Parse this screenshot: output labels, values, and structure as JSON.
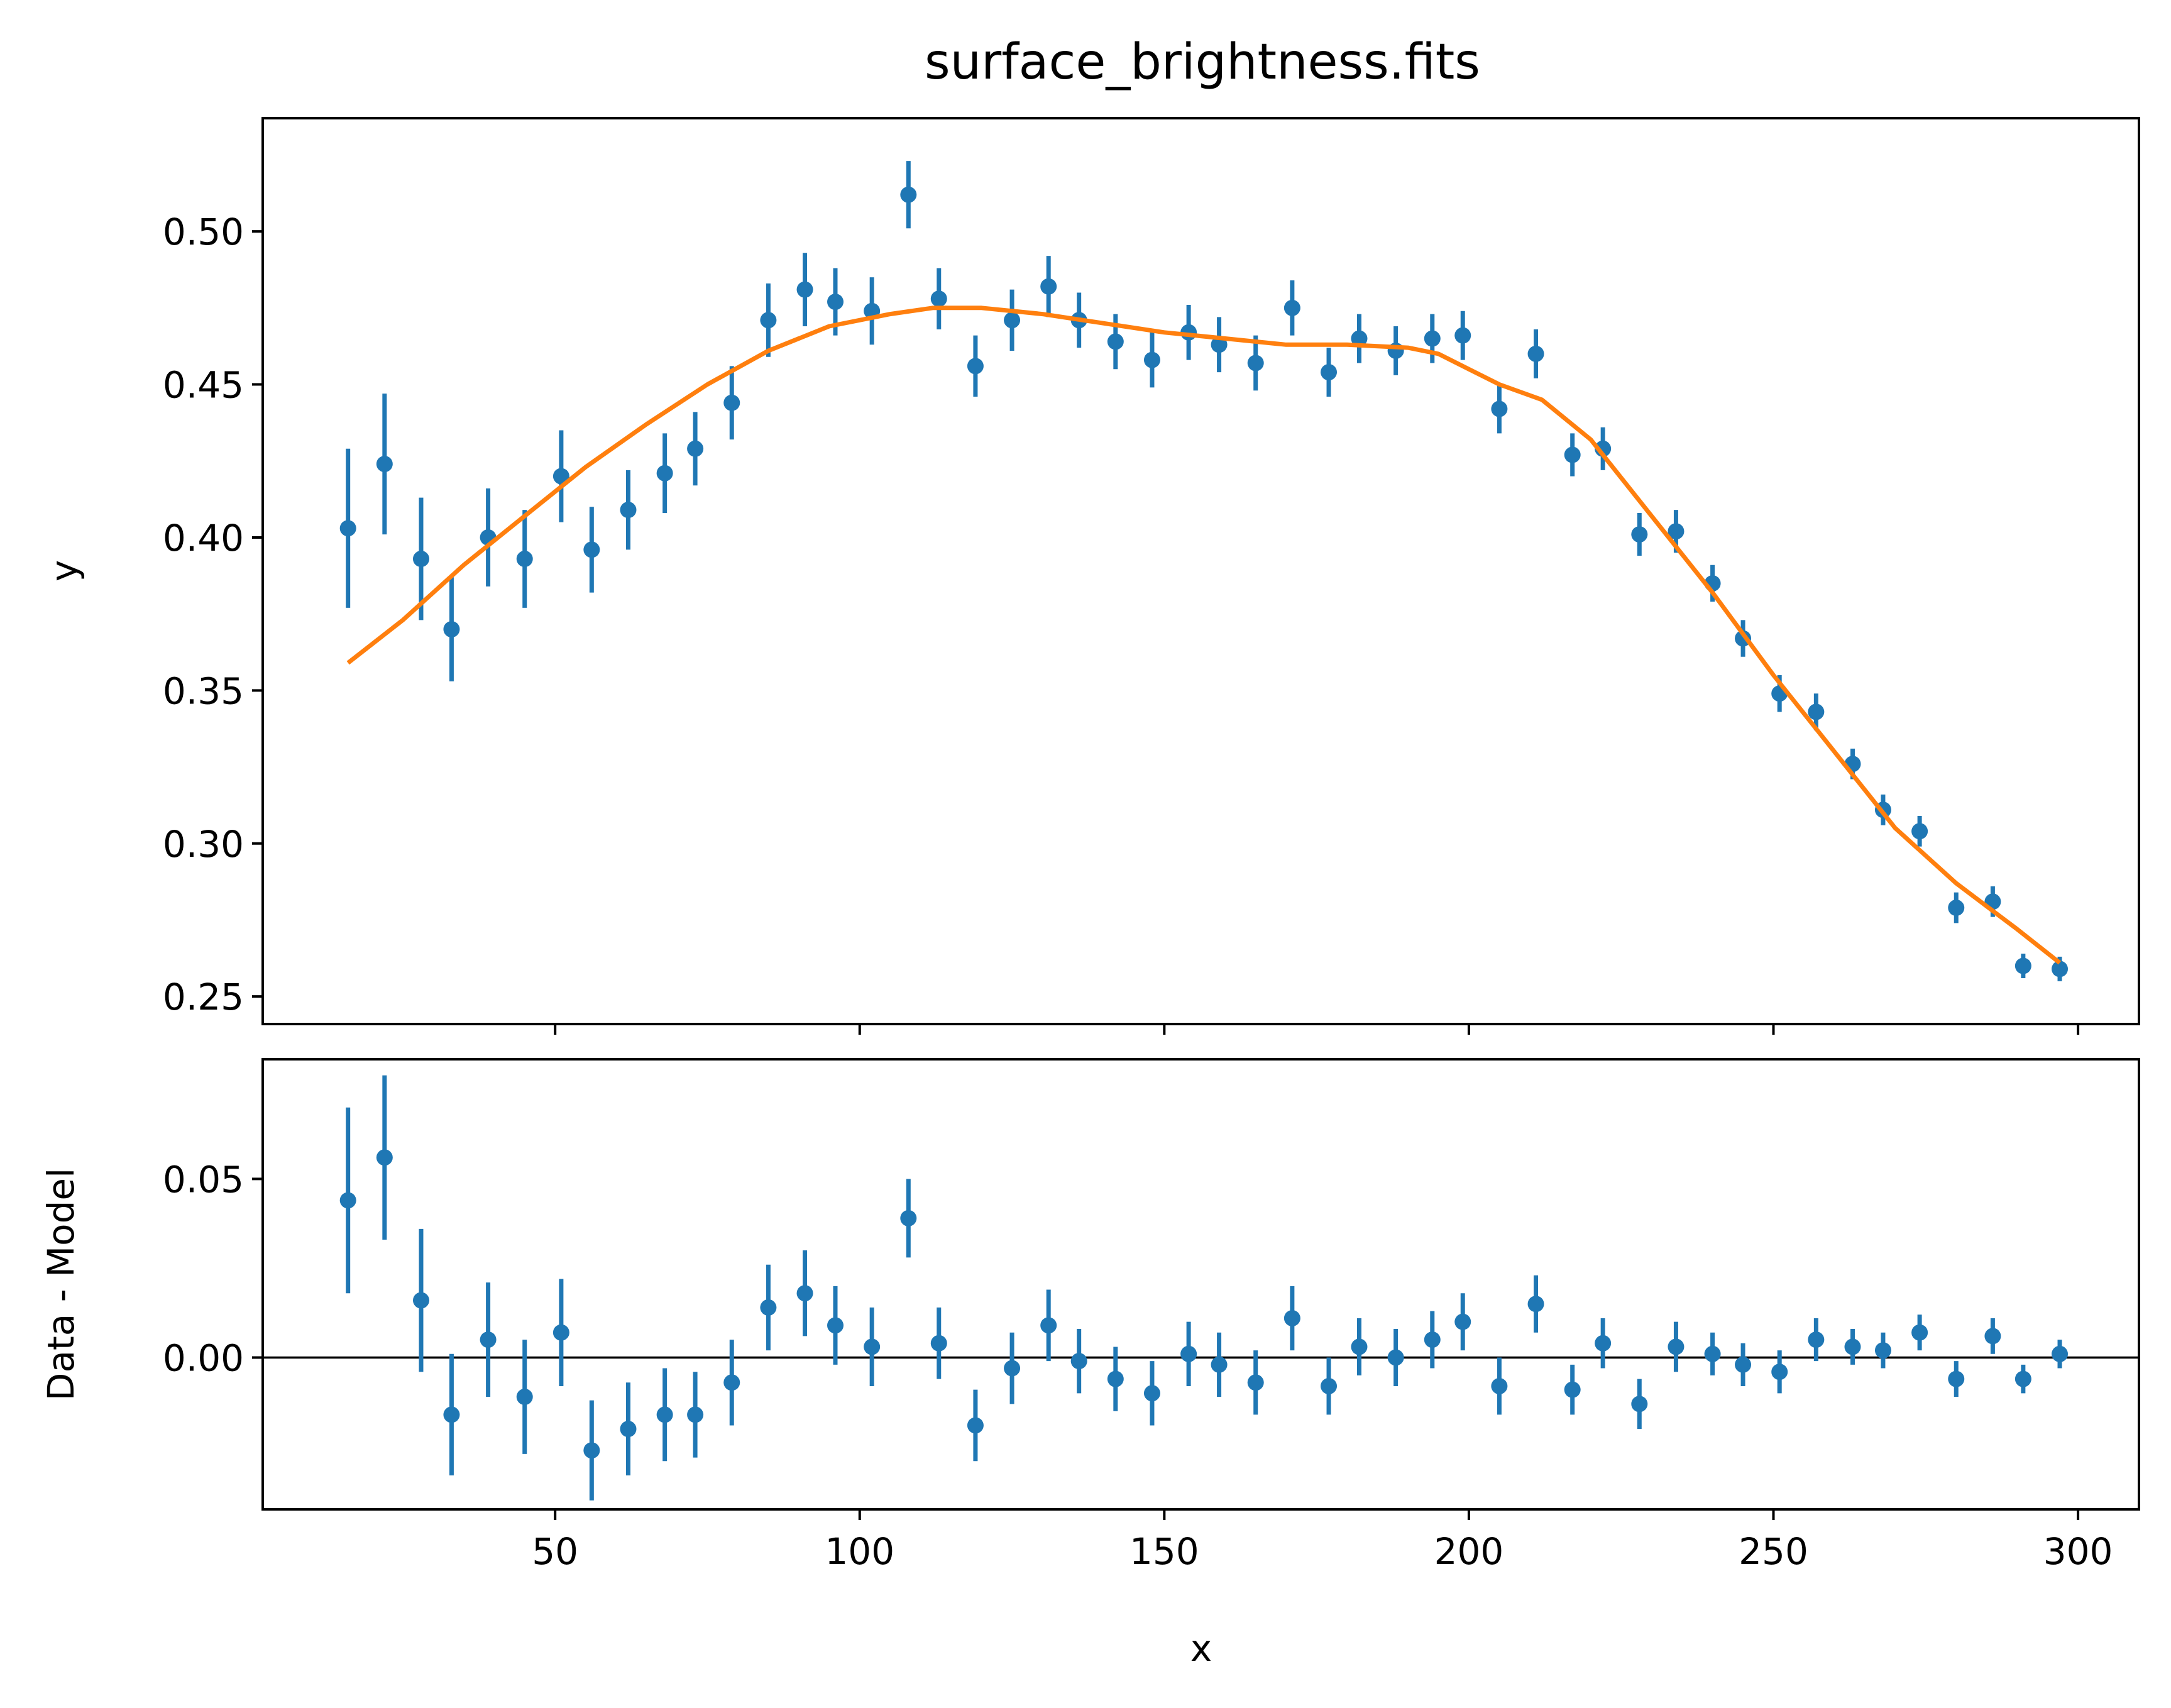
{
  "figure": {
    "title": "surface_brightness.fits"
  },
  "colors": {
    "data": "#1f77b4",
    "model": "#ff7f0e",
    "axes": "#000000",
    "zero_line": "#000000"
  },
  "chart_data": [
    {
      "type": "scatter",
      "panel": "top",
      "title": "surface_brightness.fits",
      "xlabel": "",
      "ylabel": "y",
      "xlim": [
        2,
        310
      ],
      "ylim": [
        0.241,
        0.537
      ],
      "xticks": [
        50,
        100,
        150,
        200,
        250,
        300
      ],
      "yticks": [
        0.25,
        0.3,
        0.35,
        0.4,
        0.45,
        0.5
      ],
      "ytick_labels": [
        "0.25",
        "0.30",
        "0.35",
        "0.40",
        "0.45",
        "0.50"
      ],
      "show_xtick_labels": false,
      "grid": false,
      "series": [
        {
          "kind": "errorbar",
          "x": [
            16,
            22,
            28,
            33,
            39,
            45,
            51,
            56,
            62,
            68,
            73,
            79,
            85,
            91,
            96,
            102,
            108,
            113,
            119,
            125,
            131,
            136,
            142,
            148,
            154,
            159,
            165,
            171,
            177,
            182,
            188,
            194,
            199,
            205,
            211,
            217,
            222,
            228,
            234,
            240,
            245,
            251,
            257,
            263,
            268,
            274,
            280,
            286,
            291,
            297
          ],
          "y": [
            0.403,
            0.424,
            0.393,
            0.37,
            0.4,
            0.393,
            0.42,
            0.396,
            0.409,
            0.421,
            0.429,
            0.444,
            0.471,
            0.481,
            0.477,
            0.474,
            0.512,
            0.478,
            0.456,
            0.471,
            0.482,
            0.471,
            0.464,
            0.458,
            0.467,
            0.463,
            0.457,
            0.475,
            0.454,
            0.465,
            0.461,
            0.465,
            0.466,
            0.442,
            0.46,
            0.427,
            0.429,
            0.401,
            0.402,
            0.385,
            0.367,
            0.349,
            0.343,
            0.326,
            0.311,
            0.304,
            0.279,
            0.281,
            0.26,
            0.259
          ],
          "yerr": [
            0.026,
            0.023,
            0.02,
            0.017,
            0.016,
            0.016,
            0.015,
            0.014,
            0.013,
            0.013,
            0.012,
            0.012,
            0.012,
            0.012,
            0.011,
            0.011,
            0.011,
            0.01,
            0.01,
            0.01,
            0.01,
            0.009,
            0.009,
            0.009,
            0.009,
            0.009,
            0.009,
            0.009,
            0.008,
            0.008,
            0.008,
            0.008,
            0.008,
            0.008,
            0.008,
            0.007,
            0.007,
            0.007,
            0.007,
            0.006,
            0.006,
            0.006,
            0.006,
            0.005,
            0.005,
            0.005,
            0.005,
            0.005,
            0.004,
            0.004
          ]
        },
        {
          "kind": "line",
          "x": [
            16,
            25,
            35,
            45,
            55,
            65,
            75,
            85,
            95,
            105,
            112,
            120,
            130,
            140,
            150,
            160,
            170,
            180,
            190,
            195,
            200,
            205,
            212,
            220,
            230,
            240,
            250,
            260,
            270,
            280,
            290,
            297
          ],
          "y": [
            0.359,
            0.373,
            0.391,
            0.407,
            0.423,
            0.437,
            0.45,
            0.461,
            0.469,
            0.473,
            0.475,
            0.475,
            0.473,
            0.47,
            0.467,
            0.465,
            0.463,
            0.463,
            0.462,
            0.46,
            0.455,
            0.45,
            0.445,
            0.432,
            0.407,
            0.382,
            0.355,
            0.33,
            0.305,
            0.287,
            0.272,
            0.261
          ]
        }
      ]
    },
    {
      "type": "scatter",
      "panel": "bottom",
      "xlabel": "x",
      "ylabel": "Data - Model",
      "xlim": [
        2,
        310
      ],
      "ylim": [
        -0.0425,
        0.0835
      ],
      "xticks": [
        50,
        100,
        150,
        200,
        250,
        300
      ],
      "xtick_labels": [
        "50",
        "100",
        "150",
        "200",
        "250",
        "300"
      ],
      "yticks": [
        0.0,
        0.05
      ],
      "ytick_labels": [
        "0.00",
        "0.05"
      ],
      "zero_line": 0,
      "grid": false,
      "series": [
        {
          "kind": "errorbar",
          "x": [
            16,
            22,
            28,
            33,
            39,
            45,
            51,
            56,
            62,
            68,
            73,
            79,
            85,
            91,
            96,
            102,
            108,
            113,
            119,
            125,
            131,
            136,
            142,
            148,
            154,
            159,
            165,
            171,
            177,
            182,
            188,
            194,
            199,
            205,
            211,
            217,
            222,
            228,
            234,
            240,
            245,
            251,
            257,
            263,
            268,
            274,
            280,
            286,
            291,
            297
          ],
          "y": [
            0.044,
            0.056,
            0.016,
            -0.016,
            0.005,
            -0.011,
            0.007,
            -0.026,
            -0.02,
            -0.016,
            -0.016,
            -0.007,
            0.014,
            0.018,
            0.009,
            0.003,
            0.039,
            0.004,
            -0.019,
            -0.003,
            0.009,
            -0.001,
            -0.006,
            -0.01,
            0.001,
            -0.002,
            -0.007,
            0.011,
            -0.008,
            0.003,
            0.0,
            0.005,
            0.01,
            -0.008,
            0.015,
            -0.009,
            0.004,
            -0.013,
            0.003,
            0.001,
            -0.002,
            -0.004,
            0.005,
            0.003,
            0.002,
            0.007,
            -0.006,
            0.006,
            -0.006,
            0.001
          ],
          "yerr": [
            0.026,
            0.023,
            0.02,
            0.017,
            0.016,
            0.016,
            0.015,
            0.014,
            0.013,
            0.013,
            0.012,
            0.012,
            0.012,
            0.012,
            0.011,
            0.011,
            0.011,
            0.01,
            0.01,
            0.01,
            0.01,
            0.009,
            0.009,
            0.009,
            0.009,
            0.009,
            0.009,
            0.009,
            0.008,
            0.008,
            0.008,
            0.008,
            0.008,
            0.008,
            0.008,
            0.007,
            0.007,
            0.007,
            0.007,
            0.006,
            0.006,
            0.006,
            0.006,
            0.005,
            0.005,
            0.005,
            0.005,
            0.005,
            0.004,
            0.004
          ]
        }
      ]
    }
  ]
}
